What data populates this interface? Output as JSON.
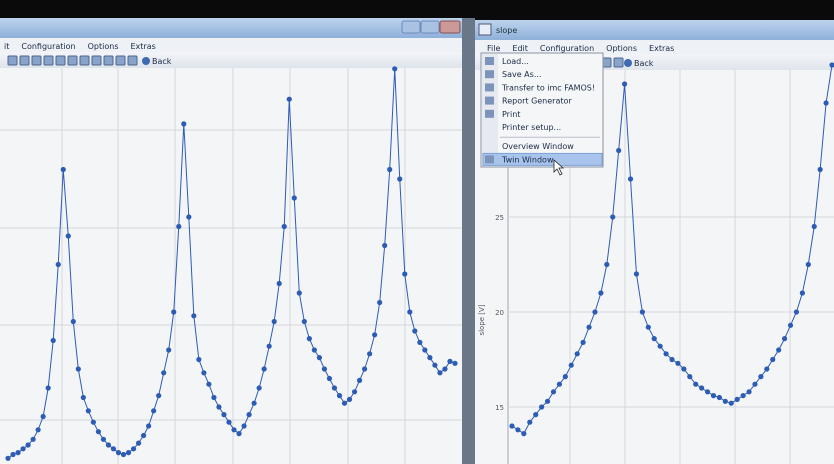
{
  "left_window": {
    "menu": [
      "it",
      "Configuration",
      "Options",
      "Extras"
    ],
    "toolbar": [
      "Back"
    ],
    "plot": {
      "type": "scatter-line",
      "color": "#2d5cb5",
      "ylim": [
        12,
        33
      ],
      "values": [
        12.3,
        12.5,
        12.6,
        12.8,
        13.0,
        13.3,
        13.8,
        14.5,
        16.0,
        18.5,
        22.5,
        27.5,
        24.0,
        19.5,
        17.0,
        15.5,
        14.8,
        14.2,
        13.7,
        13.3,
        13.0,
        12.8,
        12.6,
        12.5,
        12.6,
        12.8,
        13.1,
        13.5,
        14.0,
        14.8,
        15.6,
        16.8,
        18.0,
        20.0,
        24.5,
        29.9,
        25.0,
        19.8,
        17.5,
        16.8,
        16.2,
        15.5,
        15.0,
        14.6,
        14.2,
        13.8,
        13.6,
        14.0,
        14.6,
        15.2,
        16.0,
        17.0,
        18.2,
        19.5,
        21.5,
        24.5,
        31.2,
        26.0,
        21.0,
        19.5,
        18.6,
        18.0,
        17.6,
        17.0,
        16.5,
        16.0,
        15.6,
        15.2,
        15.4,
        15.8,
        16.4,
        17.0,
        17.8,
        18.8,
        20.5,
        23.5,
        27.5,
        32.8,
        27.0,
        22.0,
        20.0,
        19.0,
        18.4,
        18.0,
        17.6,
        17.2,
        16.8,
        17.0,
        17.4,
        17.3
      ]
    }
  },
  "right_window": {
    "title": "slope",
    "menu": [
      "File",
      "Edit",
      "Configuration",
      "Options",
      "Extras"
    ],
    "toolbar": [
      "Back"
    ],
    "file_menu": [
      "Load...",
      "Save As...",
      "Transfer to imc FAMOS!",
      "Report Generator",
      "Print",
      "Printer setup...",
      "Overview Window",
      "Twin Window"
    ],
    "plot": {
      "type": "scatter-line",
      "color": "#2d5cb5",
      "y_label": "slope [V]",
      "ylim": [
        12,
        33
      ],
      "yticks": [
        15,
        20,
        25
      ],
      "values": [
        14.0,
        13.8,
        13.6,
        14.2,
        14.6,
        15.0,
        15.3,
        15.8,
        16.2,
        16.6,
        17.2,
        17.8,
        18.4,
        19.2,
        20.0,
        21.0,
        22.5,
        25.0,
        28.5,
        32.0,
        27.0,
        22.0,
        20.0,
        19.2,
        18.6,
        18.2,
        17.8,
        17.5,
        17.3,
        17.0,
        16.6,
        16.2,
        16.0,
        15.8,
        15.6,
        15.5,
        15.3,
        15.2,
        15.4,
        15.6,
        15.8,
        16.2,
        16.6,
        17.0,
        17.5,
        18.0,
        18.6,
        19.3,
        20.0,
        21.0,
        22.5,
        24.5,
        27.5,
        31.0,
        33.0
      ]
    }
  }
}
